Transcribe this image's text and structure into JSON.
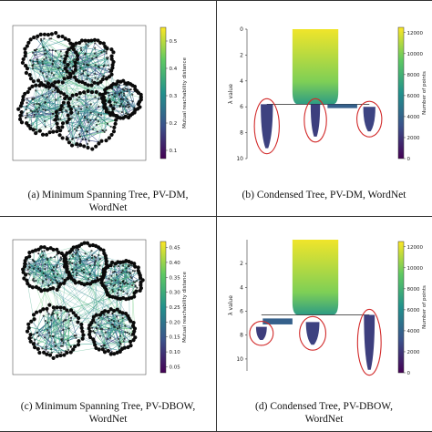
{
  "captions": {
    "a": "(a)  Minimum Spanning Tree, PV-DM,",
    "a2": "WordNet",
    "b": "(b)  Condensed Tree, PV-DM, WordNet",
    "c": "(c)  Minimum Spanning Tree, PV-DBOW,",
    "c2": "WordNet",
    "d": "(d)  Condensed Tree, PV-DBOW,",
    "d2": "WordNet"
  },
  "colors": {
    "node": "#0b0b0b",
    "edge_low": "#2c2f6e",
    "edge_mid": "#2a8c8c",
    "edge_high": "#58c79e",
    "viridis": [
      "#440154",
      "#3b528b",
      "#21918c",
      "#5ec962",
      "#fde725"
    ],
    "ellipse": "#d22a2a"
  },
  "chart_data": [
    {
      "id": "a",
      "type": "scatter",
      "description_visible": "Minimum spanning tree graph",
      "colorbar": {
        "label": "Mutual reachability distance",
        "ticks": [
          "0.1",
          "0.2",
          "0.3",
          "0.4",
          "0.5"
        ],
        "range": [
          0.07,
          0.55
        ]
      },
      "clusters": [
        {
          "cx": 0.28,
          "cy": 0.25,
          "r": 0.2
        },
        {
          "cx": 0.58,
          "cy": 0.27,
          "r": 0.18
        },
        {
          "cx": 0.24,
          "cy": 0.62,
          "r": 0.19
        },
        {
          "cx": 0.55,
          "cy": 0.7,
          "r": 0.22
        },
        {
          "cx": 0.82,
          "cy": 0.55,
          "r": 0.14
        }
      ]
    },
    {
      "id": "b",
      "type": "area",
      "ylabel": "λ value",
      "yticks": [
        "0",
        "2",
        "4",
        "6",
        "8",
        "10"
      ],
      "ylim": [
        0,
        10
      ],
      "colorbar": {
        "label": "Number of points",
        "ticks": [
          "0",
          "2000",
          "4000",
          "6000",
          "8000",
          "10000",
          "12000"
        ],
        "range": [
          0,
          12500
        ]
      },
      "root": {
        "x_center": 0.48,
        "width": 0.34,
        "lambda_start": 0,
        "lambda_split": 5.8,
        "points": 12000
      },
      "branches": [
        {
          "x_center": 0.12,
          "width": 0.09,
          "lambda_start": 5.8,
          "lambda_end": 9.2,
          "points": 2500,
          "circled": true
        },
        {
          "x_center": 0.48,
          "width": 0.07,
          "lambda_start": 5.8,
          "lambda_end": 8.3,
          "points": 2400,
          "circled": true
        },
        {
          "x_center": 0.88,
          "width": 0.09,
          "lambda_start": 6.0,
          "lambda_end": 7.9,
          "points": 2600,
          "circled": true
        }
      ],
      "small_branch": {
        "x_center": 0.68,
        "width": 0.22,
        "lambda_start": 5.8,
        "lambda_end": 6.1,
        "points": 3800
      }
    },
    {
      "id": "c",
      "type": "scatter",
      "description_visible": "Minimum spanning tree graph",
      "colorbar": {
        "label": "Mutual reachability distance",
        "ticks": [
          "0.05",
          "0.10",
          "0.15",
          "0.20",
          "0.25",
          "0.30",
          "0.35",
          "0.40",
          "0.45"
        ],
        "range": [
          0.03,
          0.47
        ]
      },
      "clusters": [
        {
          "cx": 0.25,
          "cy": 0.22,
          "r": 0.17
        },
        {
          "cx": 0.55,
          "cy": 0.18,
          "r": 0.16
        },
        {
          "cx": 0.82,
          "cy": 0.3,
          "r": 0.15
        },
        {
          "cx": 0.32,
          "cy": 0.68,
          "r": 0.2
        },
        {
          "cx": 0.75,
          "cy": 0.68,
          "r": 0.17
        }
      ]
    },
    {
      "id": "d",
      "type": "area",
      "ylabel": "λ value",
      "yticks": [
        "2",
        "4",
        "6",
        "8",
        "10"
      ],
      "ylim": [
        0,
        11
      ],
      "colorbar": {
        "label": "Number of points",
        "ticks": [
          "0",
          "2000",
          "4000",
          "6000",
          "8000",
          "10000",
          "12000"
        ],
        "range": [
          0,
          12500
        ]
      },
      "root": {
        "x_center": 0.48,
        "width": 0.34,
        "lambda_start": 0,
        "lambda_split": 6.3,
        "points": 12000
      },
      "branches": [
        {
          "x_center": 0.08,
          "width": 0.08,
          "lambda_start": 7.3,
          "lambda_end": 8.4,
          "points": 2300,
          "circled": true
        },
        {
          "x_center": 0.46,
          "width": 0.1,
          "lambda_start": 6.9,
          "lambda_end": 8.8,
          "points": 2500,
          "circled": true
        },
        {
          "x_center": 0.88,
          "width": 0.08,
          "lambda_start": 6.3,
          "lambda_end": 10.9,
          "points": 2400,
          "circled": true
        }
      ],
      "small_branch": {
        "x_center": 0.2,
        "width": 0.22,
        "lambda_start": 6.6,
        "lambda_end": 7.1,
        "points": 3800
      }
    }
  ]
}
